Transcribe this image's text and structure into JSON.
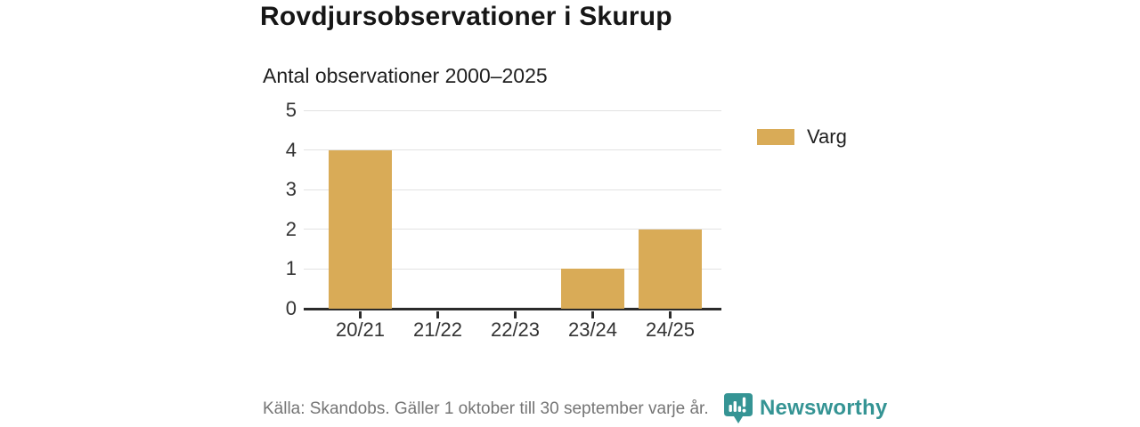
{
  "chart_data": {
    "type": "bar",
    "title": "Rovdjursobservationer i Skurup",
    "subtitle": "Antal observationer 2000–2025",
    "categories": [
      "20/21",
      "21/22",
      "22/23",
      "23/24",
      "24/25"
    ],
    "series": [
      {
        "name": "Varg",
        "color": "#d9ab57",
        "values": [
          4,
          0,
          0,
          1,
          2
        ]
      }
    ],
    "ylim": [
      0,
      5
    ],
    "yticks": [
      0,
      1,
      2,
      3,
      4,
      5
    ],
    "grid": "horizontal",
    "gridline_color": "#e2e2e2",
    "axis_color": "#2b2b2b",
    "tick_label_color": "#333333",
    "legend_position": "right"
  },
  "footer": {
    "source_text": "Källa: Skandobs. Gäller 1 oktober till 30 september varje år.",
    "brand_name": "Newsworthy",
    "brand_color": "#359494",
    "logo_icon": "bar-chart-speech-bubble"
  }
}
